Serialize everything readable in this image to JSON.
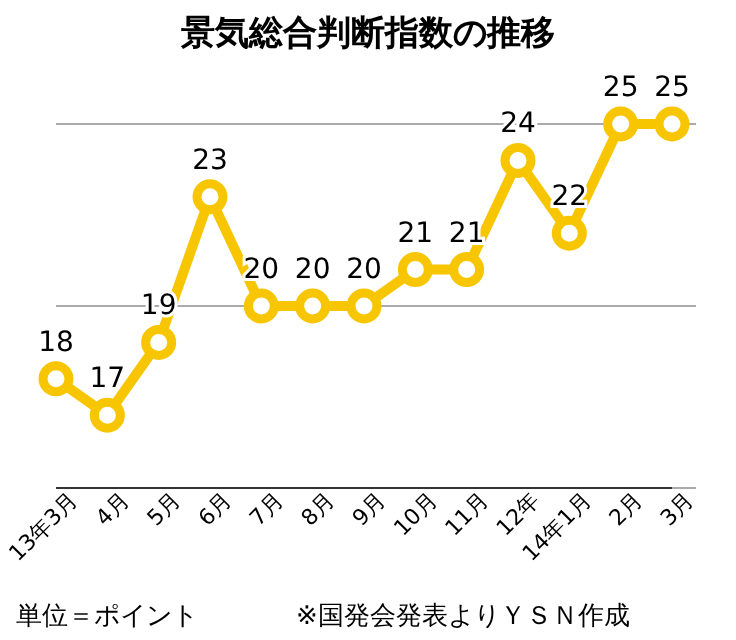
{
  "chart_data": {
    "type": "line",
    "title": "景気総合判断指数の推移",
    "categories": [
      "13年3月",
      "4月",
      "5月",
      "6月",
      "7月",
      "8月",
      "9月",
      "10月",
      "11月",
      "12年",
      "14年1月",
      "2月",
      "3月"
    ],
    "series": [
      {
        "color": "#f7c600",
        "values": [
          18,
          17,
          19,
          23,
          20,
          20,
          20,
          21,
          21,
          24,
          22,
          25,
          25
        ]
      }
    ],
    "ylim": [
      15,
      25
    ],
    "yticks": [
      {
        "value": 15,
        "label": null
      },
      {
        "value": 20,
        "label": null
      },
      {
        "value": 25,
        "label": null
      }
    ],
    "tick_labels": "x",
    "grid": "y",
    "marker": "circle",
    "line_style": "solid",
    "data_labels": true,
    "annotations": [
      "単位＝ポイント",
      "※国発会発表よりＹＳＮ作成"
    ]
  }
}
